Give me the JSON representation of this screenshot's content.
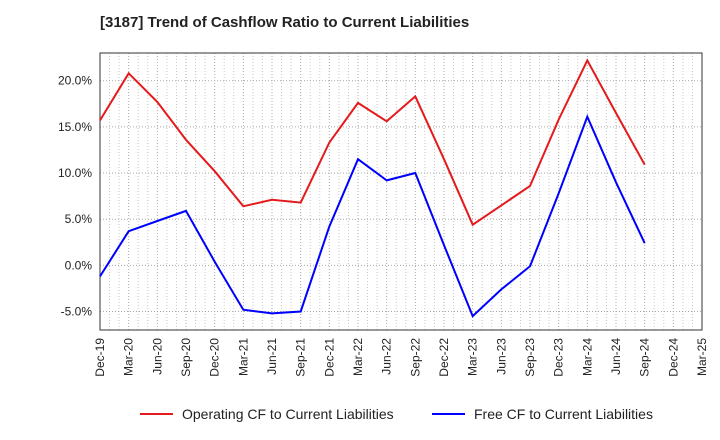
{
  "chart_data": {
    "type": "line",
    "title": "[3187]  Trend of Cashflow Ratio to Current Liabilities",
    "xlabel": "",
    "ylabel": "",
    "categories": [
      "Dec-19",
      "Mar-20",
      "Jun-20",
      "Sep-20",
      "Dec-20",
      "Mar-21",
      "Jun-21",
      "Sep-21",
      "Dec-21",
      "Mar-22",
      "Jun-22",
      "Sep-22",
      "Dec-22",
      "Mar-23",
      "Jun-23",
      "Sep-23",
      "Dec-23",
      "Mar-24",
      "Jun-24",
      "Sep-24",
      "Dec-24",
      "Mar-25"
    ],
    "y_tick_labels": [
      "-5.0%",
      "0.0%",
      "5.0%",
      "10.0%",
      "15.0%",
      "20.0%"
    ],
    "y_ticks": [
      -5,
      0,
      5,
      10,
      15,
      20
    ],
    "ylim": [
      -7,
      23
    ],
    "grid": true,
    "legend_position": "bottom",
    "series": [
      {
        "name": "Operating CF to Current Liabilities",
        "color": "#e41a1c",
        "values": [
          15.7,
          20.8,
          17.7,
          13.6,
          10.2,
          6.4,
          7.1,
          6.8,
          13.3,
          17.6,
          15.6,
          18.3,
          11.5,
          4.4,
          6.5,
          8.6,
          15.8,
          22.2,
          16.5,
          10.9,
          null,
          null
        ]
      },
      {
        "name": "Free CF to Current Liabilities",
        "color": "#0000ff",
        "values": [
          -1.2,
          3.7,
          4.8,
          5.9,
          0.4,
          -4.8,
          -5.2,
          -5.0,
          4.2,
          11.5,
          9.2,
          10.0,
          2.2,
          -5.5,
          -2.6,
          -0.1,
          7.8,
          16.1,
          9.0,
          2.4,
          null,
          null
        ]
      }
    ]
  }
}
